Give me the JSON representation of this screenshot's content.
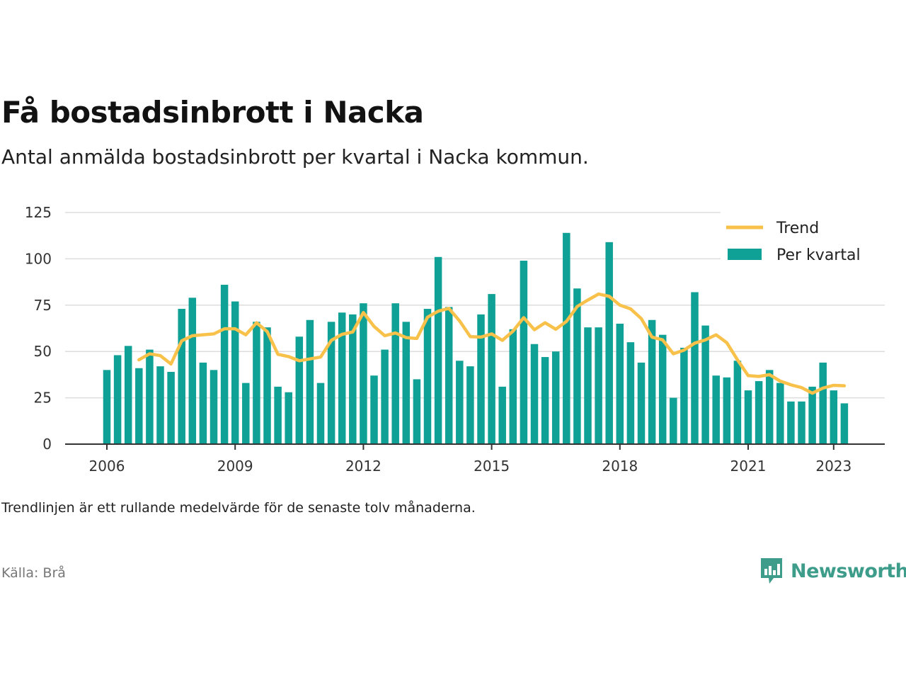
{
  "title": "Få bostadsinbrott i Nacka",
  "subtitle": "Antal anmälda bostadsinbrott per kvartal i Nacka kommun.",
  "note": "Trendlinjen är ett rullande medelvärde för de senaste tolv månaderna.",
  "source": "Källa: Brå",
  "brand": {
    "name": "Newsworthy",
    "icon": "newsworthy-logo-icon",
    "color": "#3e9c8a"
  },
  "colors": {
    "bars": "#10a196",
    "trend": "#f8c14a",
    "grid": "#dddddd",
    "axis": "#333333"
  },
  "chart_data": {
    "type": "bar",
    "x_tick_labels": [
      "2006",
      "2009",
      "2012",
      "2015",
      "2018",
      "2021",
      "2023"
    ],
    "y_ticks": [
      0,
      25,
      50,
      75,
      100,
      125
    ],
    "ylim": [
      0,
      125
    ],
    "grid": true,
    "legend_position": "top-right",
    "categories": [
      "2006 Q1",
      "2006 Q2",
      "2006 Q3",
      "2006 Q4",
      "2007 Q1",
      "2007 Q2",
      "2007 Q3",
      "2007 Q4",
      "2008 Q1",
      "2008 Q2",
      "2008 Q3",
      "2008 Q4",
      "2009 Q1",
      "2009 Q2",
      "2009 Q3",
      "2009 Q4",
      "2010 Q1",
      "2010 Q2",
      "2010 Q3",
      "2010 Q4",
      "2011 Q1",
      "2011 Q2",
      "2011 Q3",
      "2011 Q4",
      "2012 Q1",
      "2012 Q2",
      "2012 Q3",
      "2012 Q4",
      "2013 Q1",
      "2013 Q2",
      "2013 Q3",
      "2013 Q4",
      "2014 Q1",
      "2014 Q2",
      "2014 Q3",
      "2014 Q4",
      "2015 Q1",
      "2015 Q2",
      "2015 Q3",
      "2015 Q4",
      "2016 Q1",
      "2016 Q2",
      "2016 Q3",
      "2016 Q4",
      "2017 Q1",
      "2017 Q2",
      "2017 Q3",
      "2017 Q4",
      "2018 Q1",
      "2018 Q2",
      "2018 Q3",
      "2018 Q4",
      "2019 Q1",
      "2019 Q2",
      "2019 Q3",
      "2019 Q4",
      "2020 Q1",
      "2020 Q2",
      "2020 Q3",
      "2020 Q4",
      "2021 Q1",
      "2021 Q2",
      "2021 Q3",
      "2021 Q4",
      "2022 Q1",
      "2022 Q2",
      "2022 Q3",
      "2022 Q4",
      "2023 Q1",
      "2023 Q2"
    ],
    "series": [
      {
        "name": "Per kvartal",
        "type": "bar",
        "values": [
          40,
          48,
          53,
          41,
          51,
          42,
          39,
          73,
          79,
          44,
          40,
          86,
          77,
          33,
          66,
          63,
          31,
          28,
          58,
          67,
          33,
          66,
          71,
          70,
          76,
          37,
          51,
          76,
          66,
          35,
          73,
          101,
          74,
          45,
          42,
          70,
          81,
          31,
          62,
          99,
          54,
          47,
          50,
          114,
          84,
          63,
          63,
          109,
          65,
          55,
          44,
          67,
          59,
          25,
          52,
          82,
          64,
          37,
          36,
          45,
          29,
          34,
          40,
          33,
          23,
          23,
          31,
          44,
          29,
          22
        ]
      },
      {
        "name": "Trend",
        "type": "line",
        "values": [
          null,
          null,
          null,
          45.5,
          48.75,
          47.75,
          43.25,
          55.75,
          58.5,
          59,
          59.5,
          62.25,
          62.25,
          59,
          65.5,
          60.75,
          48.5,
          47.25,
          45,
          46,
          47,
          56,
          59.25,
          60.5,
          71,
          63.5,
          58.5,
          60,
          57.5,
          57,
          68.5,
          71.75,
          73.25,
          66.5,
          58,
          57.75,
          59.5,
          56,
          61,
          68.25,
          61.75,
          65.5,
          62,
          66.25,
          74.25,
          77.75,
          81,
          79.75,
          75,
          73,
          67.75,
          57.75,
          56.25,
          48.75,
          50.75,
          54.5,
          56.25,
          59,
          54.75,
          45.5,
          37,
          36.5,
          37.5,
          34,
          32,
          30.5,
          27.5,
          30.25,
          31.75,
          31.5
        ]
      }
    ]
  }
}
